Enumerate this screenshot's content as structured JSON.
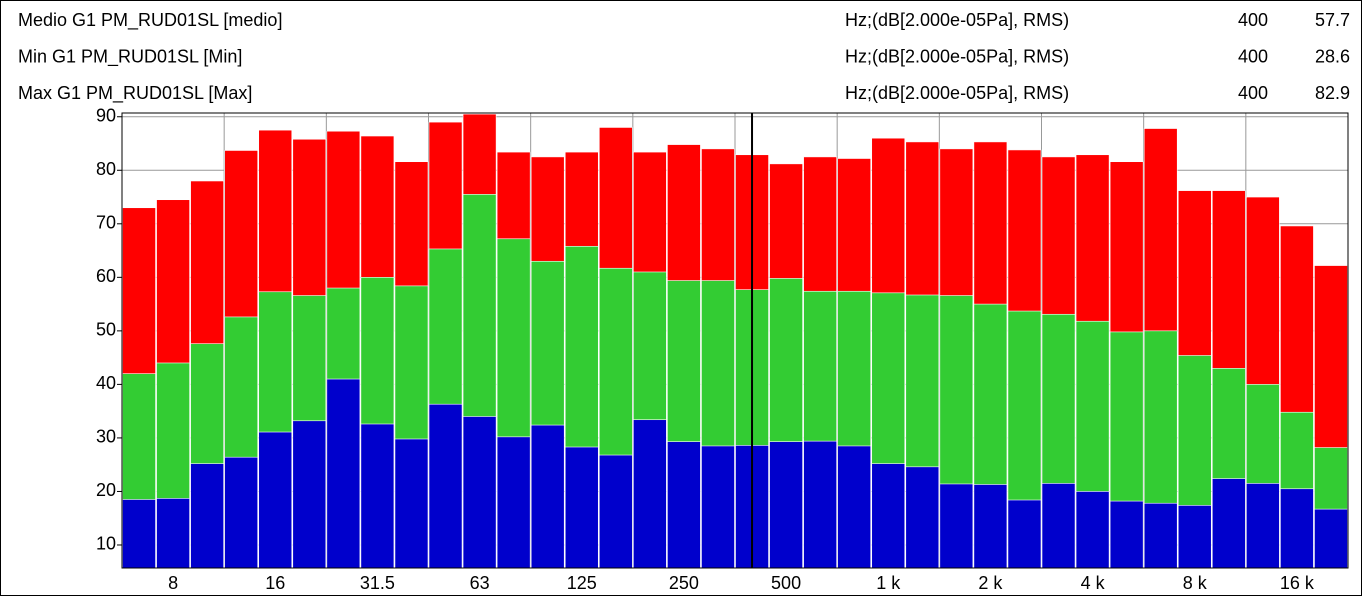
{
  "chart_data": {
    "type": "overlap-bar",
    "x": [
      6.3,
      8,
      10,
      12.5,
      16,
      20,
      25,
      31.5,
      40,
      50,
      63,
      80,
      100,
      125,
      160,
      200,
      250,
      315,
      400,
      500,
      630,
      800,
      1000,
      1250,
      1600,
      2000,
      2500,
      3150,
      4000,
      5000,
      6300,
      8000,
      10000,
      12500,
      16000,
      20000
    ],
    "xticks": [
      {
        "value": 8,
        "label": "8"
      },
      {
        "value": 16,
        "label": "16"
      },
      {
        "value": 31.5,
        "label": "31.5"
      },
      {
        "value": 63,
        "label": "63"
      },
      {
        "value": 125,
        "label": "125"
      },
      {
        "value": 250,
        "label": "250"
      },
      {
        "value": 500,
        "label": "500"
      },
      {
        "value": 1000,
        "label": "1 k"
      },
      {
        "value": 2000,
        "label": "2 k"
      },
      {
        "value": 4000,
        "label": "4 k"
      },
      {
        "value": 8000,
        "label": "8 k"
      },
      {
        "value": 16000,
        "label": "16 k"
      }
    ],
    "ylim": [
      5.7,
      90.7
    ],
    "yticks": [
      10,
      20,
      30,
      40,
      50,
      60,
      70,
      80,
      90
    ],
    "grid": true,
    "series": [
      {
        "name": "Medio G1 PM_RUD01SL [medio]",
        "unit": "Hz;(dB[2.000e-05Pa], RMS)",
        "cursor_x": 400,
        "cursor_value": 57.7,
        "color": "#33cc33",
        "values": [
          42,
          44,
          47.6,
          52.6,
          57.3,
          56.6,
          58,
          60,
          58.4,
          65.3,
          75.5,
          67.2,
          63,
          65.8,
          61.7,
          61,
          59.4,
          59.4,
          57.7,
          59.8,
          57.4,
          57.4,
          57.1,
          56.7,
          56.6,
          55,
          53.7,
          53.1,
          51.8,
          49.8,
          50,
          45.4,
          43,
          40,
          34.8,
          28.2
        ]
      },
      {
        "name": "Min G1 PM_RUD01SL [Min]",
        "unit": "Hz;(dB[2.000e-05Pa], RMS)",
        "cursor_x": 400,
        "cursor_value": 28.6,
        "color": "#0000cc",
        "values": [
          18.5,
          18.7,
          25.2,
          26.4,
          31.1,
          33.2,
          41,
          32.6,
          29.8,
          36.3,
          34,
          30.2,
          32.4,
          28.3,
          26.8,
          33.4,
          29.3,
          28.5,
          28.6,
          29.3,
          29.4,
          28.5,
          25.2,
          24.6,
          21.4,
          21.3,
          18.4,
          21.5,
          20,
          18.2,
          17.8,
          17.4,
          22.4,
          21.5,
          20.5,
          16.7
        ]
      },
      {
        "name": "Max G1 PM_RUD01SL [Max]",
        "unit": "Hz;(dB[2.000e-05Pa], RMS)",
        "cursor_x": 400,
        "cursor_value": 82.9,
        "color": "#ff0000",
        "values": [
          73,
          74.5,
          78,
          83.7,
          87.5,
          85.8,
          87.3,
          86.4,
          81.6,
          89,
          90.5,
          83.4,
          82.5,
          83.4,
          88,
          83.4,
          84.8,
          84,
          82.9,
          81.2,
          82.5,
          82.2,
          86,
          85.3,
          84,
          85.3,
          83.8,
          82.5,
          82.9,
          81.6,
          87.8,
          76.2,
          76.2,
          75,
          69.6,
          62.2
        ]
      }
    ]
  }
}
